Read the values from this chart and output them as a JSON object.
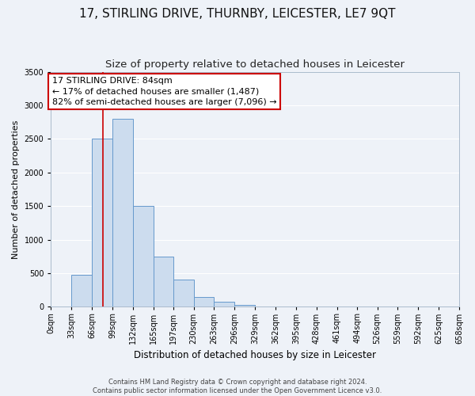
{
  "title": "17, STIRLING DRIVE, THURNBY, LEICESTER, LE7 9QT",
  "subtitle": "Size of property relative to detached houses in Leicester",
  "xlabel": "Distribution of detached houses by size in Leicester",
  "ylabel": "Number of detached properties",
  "bin_edges": [
    0,
    33,
    66,
    99,
    132,
    165,
    197,
    230,
    263,
    296,
    329,
    362,
    395,
    428,
    461,
    494,
    526,
    559,
    592,
    625,
    658
  ],
  "bin_labels": [
    "0sqm",
    "33sqm",
    "66sqm",
    "99sqm",
    "132sqm",
    "165sqm",
    "197sqm",
    "230sqm",
    "263sqm",
    "296sqm",
    "329sqm",
    "362sqm",
    "395sqm",
    "428sqm",
    "461sqm",
    "494sqm",
    "526sqm",
    "559sqm",
    "592sqm",
    "625sqm",
    "658sqm"
  ],
  "bar_heights": [
    5,
    470,
    2500,
    2800,
    1500,
    750,
    400,
    150,
    80,
    30,
    5,
    0,
    0,
    0,
    0,
    0,
    0,
    0,
    0,
    0
  ],
  "bar_color": "#ccdcee",
  "bar_edge_color": "#6699cc",
  "property_size": 84,
  "vline_color": "#cc0000",
  "annotation_text": "17 STIRLING DRIVE: 84sqm\n← 17% of detached houses are smaller (1,487)\n82% of semi-detached houses are larger (7,096) →",
  "annotation_box_facecolor": "#ffffff",
  "annotation_box_edgecolor": "#cc0000",
  "ylim": [
    0,
    3500
  ],
  "yticks": [
    0,
    500,
    1000,
    1500,
    2000,
    2500,
    3000,
    3500
  ],
  "footer_line1": "Contains HM Land Registry data © Crown copyright and database right 2024.",
  "footer_line2": "Contains public sector information licensed under the Open Government Licence v3.0.",
  "bg_color": "#eef2f8",
  "grid_color": "#ffffff",
  "title_fontsize": 11,
  "subtitle_fontsize": 9.5,
  "ylabel_fontsize": 8,
  "xlabel_fontsize": 8.5,
  "tick_fontsize": 7,
  "annotation_fontsize": 8,
  "footer_fontsize": 6
}
